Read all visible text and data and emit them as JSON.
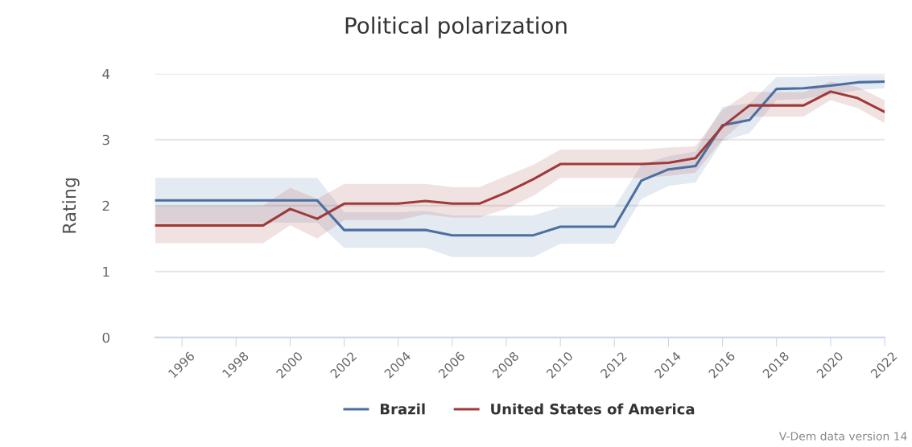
{
  "chart_data": {
    "type": "line",
    "title": "Political polarization",
    "ylabel": "Rating",
    "x": [
      1995,
      1996,
      1997,
      1998,
      1999,
      2000,
      2001,
      2002,
      2003,
      2004,
      2005,
      2006,
      2007,
      2008,
      2009,
      2010,
      2011,
      2012,
      2013,
      2014,
      2015,
      2016,
      2017,
      2018,
      2019,
      2020,
      2021,
      2022
    ],
    "series": [
      {
        "name": "Brazil",
        "color": "#4a6fa0",
        "values": [
          2.08,
          2.08,
          2.08,
          2.08,
          2.08,
          2.08,
          2.08,
          1.63,
          1.63,
          1.63,
          1.63,
          1.55,
          1.55,
          1.55,
          1.55,
          1.68,
          1.68,
          1.68,
          2.38,
          2.55,
          2.6,
          3.22,
          3.3,
          3.77,
          3.78,
          3.82,
          3.87,
          3.88
        ],
        "lower": [
          1.74,
          1.74,
          1.74,
          1.74,
          1.74,
          1.74,
          1.74,
          1.36,
          1.36,
          1.36,
          1.36,
          1.22,
          1.22,
          1.22,
          1.22,
          1.42,
          1.42,
          1.42,
          2.1,
          2.3,
          2.35,
          2.98,
          3.1,
          3.6,
          3.62,
          3.68,
          3.75,
          3.78
        ],
        "upper": [
          2.42,
          2.42,
          2.42,
          2.42,
          2.42,
          2.42,
          2.42,
          1.9,
          1.9,
          1.9,
          1.92,
          1.85,
          1.85,
          1.85,
          1.85,
          1.98,
          1.98,
          1.98,
          2.62,
          2.75,
          2.82,
          3.5,
          3.55,
          3.95,
          3.95,
          3.97,
          3.98,
          3.98
        ]
      },
      {
        "name": "United States of America",
        "color": "#a03a3a",
        "values": [
          1.7,
          1.7,
          1.7,
          1.7,
          1.7,
          1.95,
          1.8,
          2.03,
          2.03,
          2.03,
          2.07,
          2.03,
          2.03,
          2.2,
          2.4,
          2.63,
          2.63,
          2.63,
          2.63,
          2.65,
          2.72,
          3.2,
          3.52,
          3.52,
          3.52,
          3.73,
          3.63,
          3.42
        ],
        "lower": [
          1.43,
          1.43,
          1.43,
          1.43,
          1.43,
          1.7,
          1.5,
          1.78,
          1.78,
          1.78,
          1.87,
          1.82,
          1.82,
          1.95,
          2.15,
          2.42,
          2.42,
          2.42,
          2.42,
          2.45,
          2.5,
          3.0,
          3.35,
          3.35,
          3.35,
          3.6,
          3.48,
          3.25
        ],
        "upper": [
          2.0,
          2.0,
          2.0,
          2.0,
          2.0,
          2.27,
          2.1,
          2.33,
          2.33,
          2.33,
          2.33,
          2.28,
          2.28,
          2.45,
          2.62,
          2.85,
          2.85,
          2.85,
          2.85,
          2.88,
          2.9,
          3.45,
          3.73,
          3.72,
          3.72,
          3.88,
          3.8,
          3.6
        ]
      }
    ],
    "xlim": [
      1995,
      2022
    ],
    "xticks": [
      1996,
      1998,
      2000,
      2002,
      2004,
      2006,
      2008,
      2010,
      2012,
      2014,
      2016,
      2018,
      2020,
      2022
    ],
    "ylim": [
      0,
      4
    ],
    "yticks": [
      0,
      1,
      2,
      3,
      4
    ],
    "grid": "y",
    "legend": "bottom",
    "marker": "none",
    "line_style": "solid",
    "annotations": [
      "V-Dem data version 14"
    ]
  }
}
